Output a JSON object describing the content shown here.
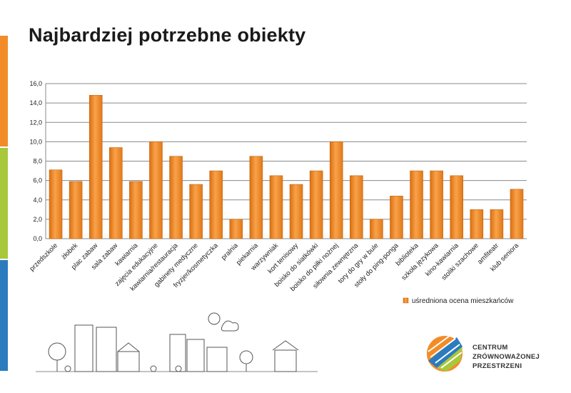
{
  "page": {
    "title": "Najbardziej potrzebne obiekty",
    "side_colors": [
      "#f28c28",
      "#a8c83c",
      "#2b7bbf"
    ]
  },
  "chart_data": {
    "type": "bar",
    "categories": [
      "przedszkole",
      "żłobek",
      "plac zabaw",
      "sala zabaw",
      "kawiarnia",
      "zajęcia edukacyjne",
      "kawiarnia/restauracja",
      "gabinety medyczne",
      "fryzjer/kosmetyczka",
      "pralnia",
      "piekarnia",
      "warzywniak",
      "kort tenisowy",
      "boisko do siatkówki",
      "boisko do piłki nożnej",
      "siłownia zewnętrzna",
      "tory do gry w bule",
      "stoły do ping-ponga",
      "biblioteka",
      "szkoła językowa",
      "kino-kawiarnia",
      "stoliki szachowe",
      "amfiteatr",
      "klub seniora"
    ],
    "series": [
      {
        "name": "uśredniona ocena mieszkańców",
        "values": [
          7.1,
          5.9,
          14.8,
          9.4,
          5.9,
          10.0,
          8.5,
          5.6,
          7.0,
          2.0,
          8.5,
          6.5,
          5.6,
          7.0,
          10.0,
          6.5,
          2.0,
          4.4,
          7.0,
          7.0,
          6.5,
          3.0,
          3.0,
          5.1
        ]
      }
    ],
    "y_ticks": [
      "0,0",
      "2,0",
      "4,0",
      "6,0",
      "8,0",
      "10,0",
      "12,0",
      "14,0",
      "16,0"
    ],
    "ylim": [
      0,
      16
    ],
    "grid": true,
    "legend_position": "bottom-right",
    "bar_color": "#f0861e"
  },
  "logo": {
    "lines": [
      "CENTRUM",
      "ZRÓWNOWAŻONEJ",
      "PRZESTRZENI"
    ]
  }
}
